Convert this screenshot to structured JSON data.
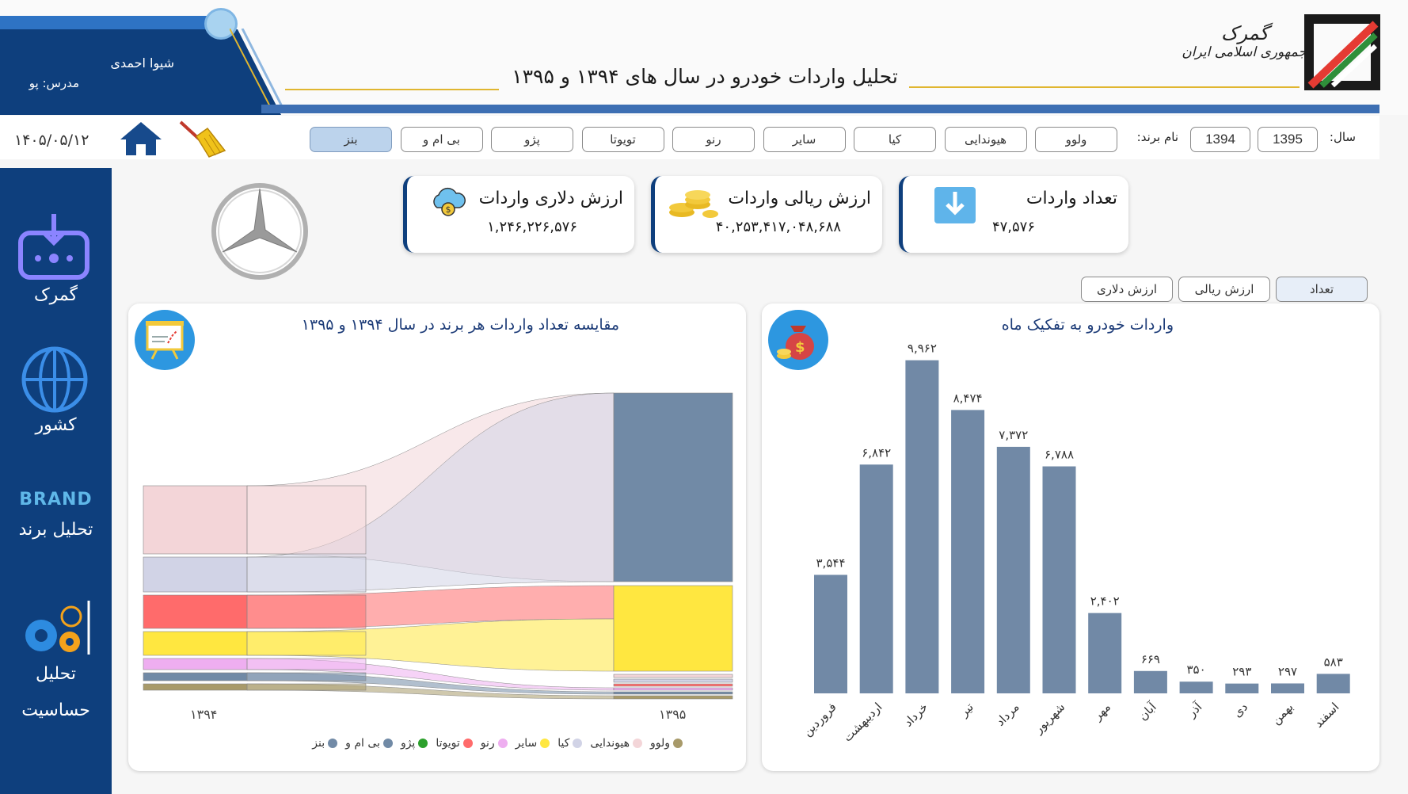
{
  "header": {
    "title": "تحلیل واردات خودرو در سال های ۱۳۹۴ و ۱۳۹۵",
    "student_name": "شیوا احمدی",
    "teacher_label": "مدرس: پو",
    "logo_line1": "گمرک",
    "logo_line2": "جمهوری اسلامی ایران",
    "date": "۱۴۰۵/۰۵/۱۲"
  },
  "filters": {
    "year_label": "سال:",
    "years": [
      "1395",
      "1394"
    ],
    "brand_label": "نام برند:",
    "brands": [
      "ولوو",
      "هیوندایی",
      "کیا",
      "سایر",
      "رنو",
      "تویوتا",
      "پژو",
      "بی ام و",
      "بنز"
    ],
    "selected_brand": "بنز"
  },
  "sidebar": {
    "items": [
      {
        "label": "گمرک",
        "icon": "customs-icon"
      },
      {
        "label": "کشور",
        "icon": "globe-icon"
      },
      {
        "label": "تحلیل برند",
        "icon": "brand-icon",
        "icon_text": "BRAND"
      },
      {
        "label_line1": "تحلیل",
        "label_line2": "حساسیت",
        "icon": "gears-icon"
      }
    ]
  },
  "kpis": [
    {
      "title": "تعداد واردات",
      "value": "۴۷,۵۷۶",
      "icon": "download-icon"
    },
    {
      "title": "ارزش ریالی واردات",
      "value": "۴۰,۲۵۳,۴۱۷,۰۴۸,۶۸۸",
      "icon": "coins-icon"
    },
    {
      "title": "ارزش دلاری واردات",
      "value": "۱,۲۴۶,۲۲۶,۵۷۶",
      "icon": "cloud-dollar-icon"
    }
  ],
  "toggles": [
    "تعداد",
    "ارزش ریالی",
    "ارزش دلاری"
  ],
  "selected_toggle": "تعداد",
  "colors": {
    "navy": "#0e3f7d",
    "bar": "#7189a6",
    "bmw": "#718aa6",
    "peugeot": "#2ca02c",
    "toyota": "#ff6b6b",
    "renault": "#eeaef0",
    "other": "#ffe740",
    "kia": "#d1d3e6",
    "hyundai": "#f3d5d8",
    "volvo": "#a89a6a"
  },
  "sankey": {
    "title": "مقایسه تعداد واردات هر برند در سال ۱۳۹۴ و ۱۳۹۵",
    "left_label": "۱۳۹۴",
    "right_label": "۱۳۹۵",
    "legend": [
      {
        "name": "ولوو",
        "color": "#a89a6a"
      },
      {
        "name": "هیوندایی",
        "color": "#f3d5d8"
      },
      {
        "name": "کیا",
        "color": "#d1d3e6"
      },
      {
        "name": "سایر",
        "color": "#ffe740"
      },
      {
        "name": "رنو",
        "color": "#eeaef0"
      },
      {
        "name": "تویوتا",
        "color": "#ff6b6b"
      },
      {
        "name": "پژو",
        "color": "#2ca02c"
      },
      {
        "name": "بی ام و",
        "color": "#718aa6"
      },
      {
        "name": "بنز",
        "color": "#718aa6"
      }
    ]
  },
  "chart_data": {
    "type": "bar",
    "title": "واردات خودرو به تفکیک ماه",
    "categories": [
      "فروردین",
      "اردیبهشت",
      "خرداد",
      "تیر",
      "مرداد",
      "شهریور",
      "مهر",
      "آبان",
      "آذر",
      "دی",
      "بهمن",
      "اسفند"
    ],
    "values": [
      3544,
      6842,
      9962,
      8474,
      7372,
      6788,
      2402,
      669,
      350,
      293,
      297,
      583
    ],
    "value_labels": [
      "۳,۵۴۴",
      "۶,۸۴۲",
      "۹,۹۶۲",
      "۸,۴۷۴",
      "۷,۳۷۲",
      "۶,۷۸۸",
      "۲,۴۰۲",
      "۶۶۹",
      "۳۵۰",
      "۲۹۳",
      "۲۹۷",
      "۵۸۳"
    ],
    "ylim": [
      0,
      10000
    ],
    "grid": false,
    "legend": "none"
  }
}
